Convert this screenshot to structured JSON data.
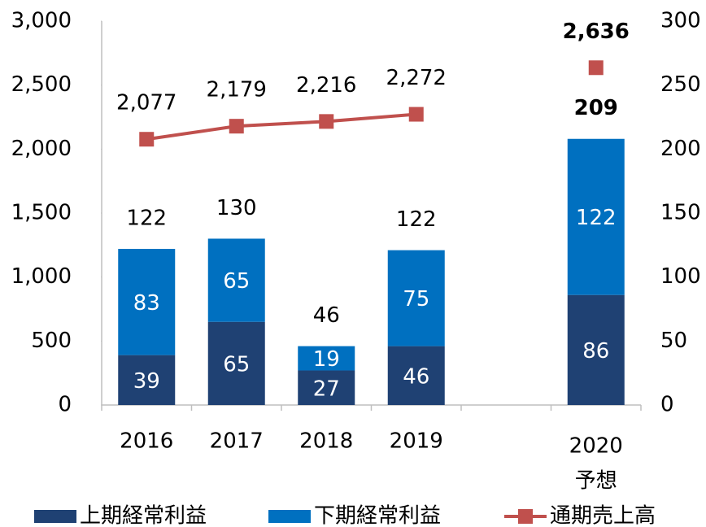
{
  "chart_data": {
    "type": "bar_line",
    "categories": [
      "2016",
      "2017",
      "2018",
      "2019",
      null,
      "2020"
    ],
    "category_notes": [
      null,
      null,
      null,
      null,
      null,
      "予想"
    ],
    "series": [
      {
        "name": "上期経常利益",
        "color": "#1f4173",
        "type": "bar",
        "axis": "y2",
        "values": [
          39,
          65,
          27,
          46,
          null,
          86
        ]
      },
      {
        "name": "下期経常利益",
        "color": "#0070c0",
        "type": "bar",
        "axis": "y2",
        "values": [
          83,
          65,
          19,
          75,
          null,
          122
        ]
      },
      {
        "name": "通期売上高",
        "color": "#c0504d",
        "type": "line",
        "axis": "y",
        "values": [
          2077,
          2179,
          2216,
          2272,
          null,
          2636
        ],
        "value_labels": [
          "2,077",
          "2,179",
          "2,216",
          "2,272",
          null,
          "2,636"
        ]
      }
    ],
    "totals": [
      122,
      130,
      46,
      122,
      null,
      209
    ],
    "ylim": [
      0,
      3000
    ],
    "yticks": [
      0,
      500,
      {
        "value": 1000,
        "label": "1,000"
      },
      {
        "value": 1500,
        "label": "1,500"
      },
      {
        "value": 2000,
        "label": "2,000"
      },
      {
        "value": 2500,
        "label": "2,500"
      },
      {
        "value": 3000,
        "label": "3,000"
      }
    ],
    "y2lim": [
      0,
      300
    ],
    "y2ticks": [
      0,
      50,
      100,
      150,
      200,
      250,
      300
    ],
    "legend": "bottom"
  }
}
